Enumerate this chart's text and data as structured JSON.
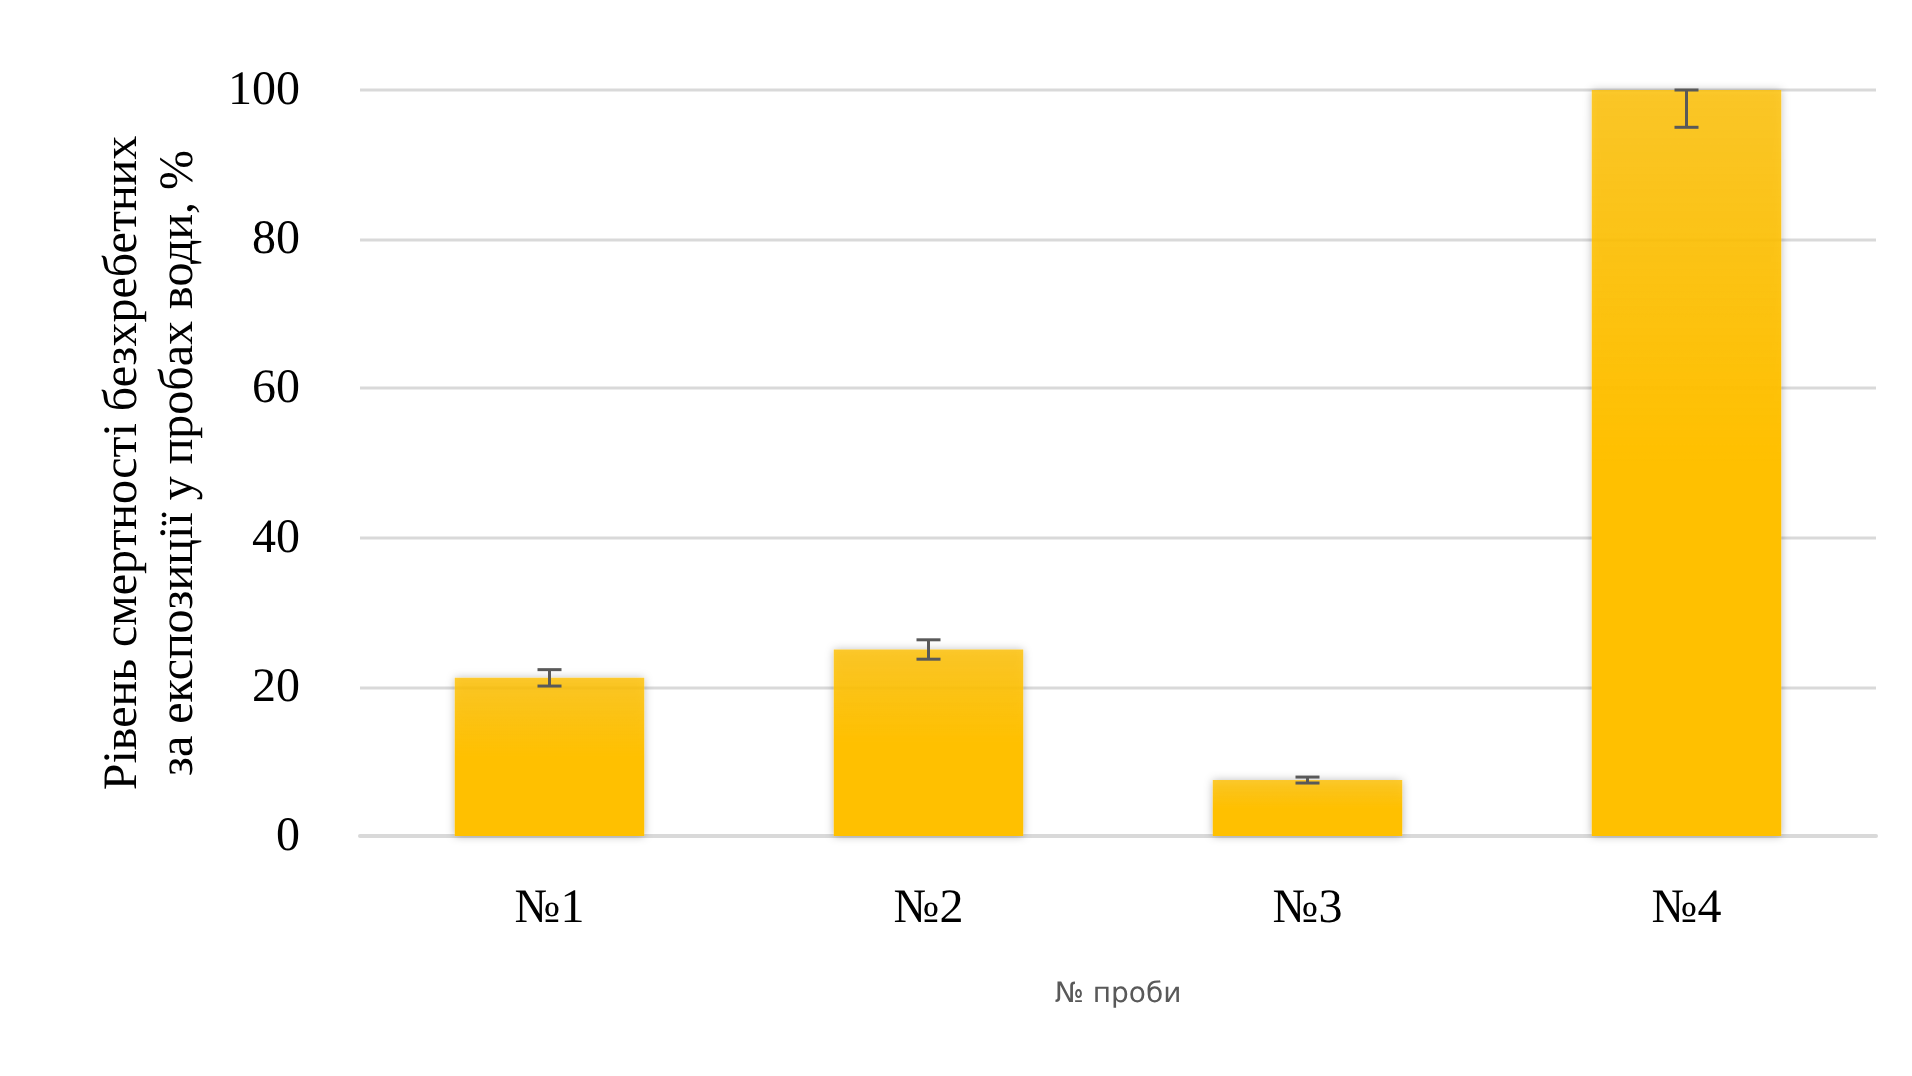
{
  "chart_data": {
    "type": "bar",
    "xlabel": "№ проби",
    "ylabel": "Рівень смертності безхребетних за експозиції у пробах води, %",
    "categories": [
      "№1",
      "№2",
      "№3",
      "№4"
    ],
    "values": [
      21.2,
      25,
      7.5,
      100
    ],
    "errors": [
      1.1,
      1.3,
      0.4,
      [
        95,
        100
      ]
    ],
    "color": "#ffc000",
    "ylim": [
      0,
      100
    ],
    "yticks": [
      0,
      20,
      40,
      60,
      80,
      100
    ],
    "grid": "y"
  }
}
